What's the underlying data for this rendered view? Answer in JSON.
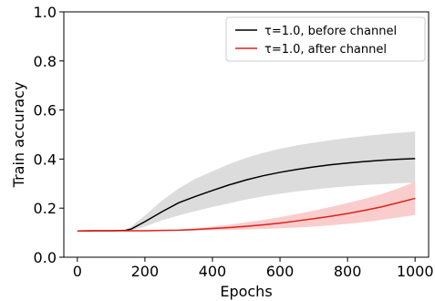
{
  "chart_data": {
    "type": "line",
    "title": "",
    "xlabel": "Epochs",
    "ylabel": "Train accuracy",
    "xlim": [
      -40,
      1040
    ],
    "ylim": [
      0.0,
      1.0
    ],
    "xticks": [
      0,
      200,
      400,
      600,
      800,
      1000
    ],
    "xtick_labels": [
      "0",
      "200",
      "400",
      "600",
      "800",
      "1000"
    ],
    "yticks": [
      0.0,
      0.2,
      0.4,
      0.6,
      0.8,
      1.0
    ],
    "ytick_labels": [
      "0.0",
      "0.2",
      "0.4",
      "0.6",
      "0.8",
      "1.0"
    ],
    "grid": false,
    "legend_position": "top-right",
    "series": [
      {
        "name": "τ=1.0, before channel",
        "color": "#000000",
        "band_color": "#d6d6d6",
        "x": [
          0,
          50,
          100,
          140,
          160,
          200,
          250,
          300,
          350,
          400,
          450,
          500,
          550,
          600,
          650,
          700,
          750,
          800,
          850,
          900,
          950,
          1000
        ],
        "y": [
          0.107,
          0.108,
          0.108,
          0.109,
          0.115,
          0.145,
          0.185,
          0.222,
          0.248,
          0.272,
          0.295,
          0.315,
          0.332,
          0.346,
          0.358,
          0.368,
          0.377,
          0.384,
          0.39,
          0.395,
          0.399,
          0.402
        ],
        "lower": [
          0.107,
          0.108,
          0.108,
          0.108,
          0.11,
          0.125,
          0.15,
          0.17,
          0.188,
          0.205,
          0.22,
          0.235,
          0.248,
          0.259,
          0.268,
          0.276,
          0.283,
          0.289,
          0.294,
          0.298,
          0.301,
          0.304
        ],
        "upper": [
          0.107,
          0.108,
          0.108,
          0.11,
          0.125,
          0.17,
          0.23,
          0.28,
          0.32,
          0.35,
          0.38,
          0.405,
          0.425,
          0.442,
          0.456,
          0.467,
          0.477,
          0.486,
          0.494,
          0.501,
          0.507,
          0.512
        ]
      },
      {
        "name": "τ=1.0, after channel",
        "color": "#e0201b",
        "band_color": "#f9c4c4",
        "x": [
          0,
          50,
          100,
          150,
          200,
          250,
          300,
          350,
          400,
          450,
          500,
          550,
          600,
          650,
          700,
          750,
          800,
          850,
          900,
          950,
          1000
        ],
        "y": [
          0.107,
          0.108,
          0.108,
          0.108,
          0.108,
          0.109,
          0.11,
          0.113,
          0.117,
          0.121,
          0.126,
          0.132,
          0.139,
          0.148,
          0.157,
          0.167,
          0.178,
          0.191,
          0.205,
          0.222,
          0.24
        ],
        "lower": [
          0.107,
          0.108,
          0.108,
          0.108,
          0.108,
          0.108,
          0.108,
          0.109,
          0.11,
          0.111,
          0.113,
          0.115,
          0.118,
          0.121,
          0.125,
          0.13,
          0.136,
          0.143,
          0.152,
          0.162,
          0.172
        ],
        "upper": [
          0.107,
          0.108,
          0.108,
          0.108,
          0.109,
          0.11,
          0.113,
          0.118,
          0.125,
          0.133,
          0.142,
          0.152,
          0.163,
          0.176,
          0.19,
          0.205,
          0.221,
          0.238,
          0.257,
          0.28,
          0.308
        ]
      }
    ]
  }
}
